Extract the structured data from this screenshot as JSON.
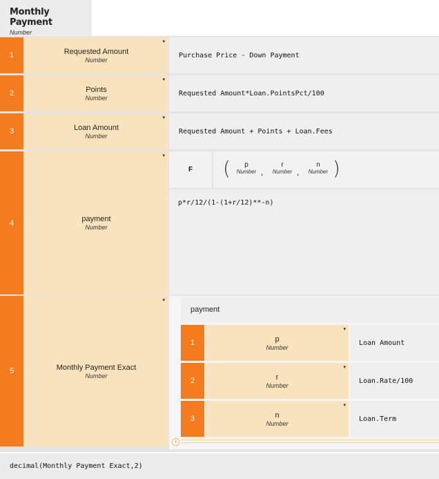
{
  "header": {
    "title": "Monthly Payment",
    "type": "Number"
  },
  "rows": [
    {
      "num": "1",
      "name": "Requested Amount",
      "type": "Number",
      "formula": "Purchase Price - Down Payment"
    },
    {
      "num": "2",
      "name": "Points",
      "type": "Number",
      "formula": "Requested Amount*Loan.PointsPct/100"
    },
    {
      "num": "3",
      "name": "Loan Amount",
      "type": "Number",
      "formula": "Requested Amount + Points + Loan.Fees"
    },
    {
      "num": "4",
      "name": "payment",
      "type": "Number",
      "function": {
        "label": "F",
        "open": "(",
        "close": ")",
        "params": [
          {
            "name": "p",
            "type": "Number"
          },
          {
            "name": "r",
            "type": "Number"
          },
          {
            "name": "n",
            "type": "Number"
          }
        ],
        "separator": ",",
        "body": "p*r/12/(1-(1+r/12)**-n)"
      }
    },
    {
      "num": "5",
      "name": "Monthly Payment Exact",
      "type": "Number",
      "call": {
        "title": "payment",
        "args": [
          {
            "num": "1",
            "name": "p",
            "type": "Number",
            "value": "Loan Amount"
          },
          {
            "num": "2",
            "name": "r",
            "type": "Number",
            "value": "Loan.Rate/100"
          },
          {
            "num": "3",
            "name": "n",
            "type": "Number",
            "value": "Loan.Term"
          }
        ]
      }
    }
  ],
  "icons": {
    "dropdown": "caret-down-icon",
    "add": "add-icon"
  },
  "glyphs": {
    "caret": "▾",
    "plus": "+"
  },
  "colors": {
    "number_bg": "#f47c1e",
    "label_bg": "#f9e3bd",
    "formula_bg": "#efefef",
    "header_bg": "#ececec"
  },
  "footer": {
    "formula": "decimal(Monthly Payment Exact,2)"
  }
}
